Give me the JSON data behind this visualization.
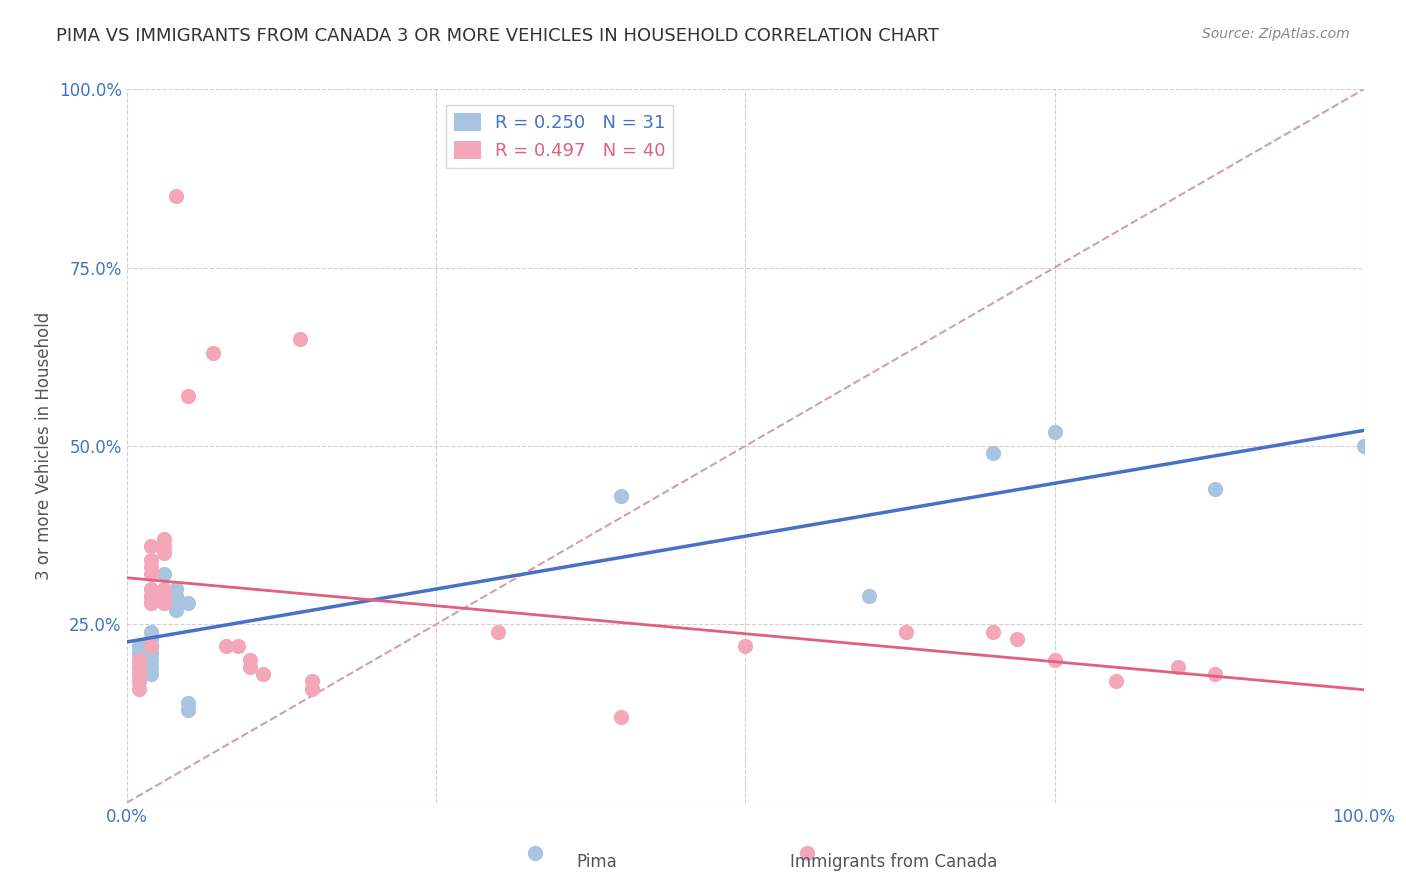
{
  "title": "PIMA VS IMMIGRANTS FROM CANADA 3 OR MORE VEHICLES IN HOUSEHOLD CORRELATION CHART",
  "source": "Source: ZipAtlas.com",
  "ylabel": "3 or more Vehicles in Household",
  "xlabel_pima": "Pima",
  "xlabel_canada": "Immigrants from Canada",
  "xlim": [
    0,
    1
  ],
  "ylim": [
    0,
    1
  ],
  "xticks": [
    0,
    0.25,
    0.5,
    0.75,
    1.0
  ],
  "yticks": [
    0,
    0.25,
    0.5,
    0.75,
    1.0
  ],
  "xticklabels": [
    "0.0%",
    "",
    "",
    "",
    "100.0%"
  ],
  "yticklabels": [
    "",
    "25.0%",
    "50.0%",
    "75.0%",
    "100.0%"
  ],
  "pima_R": 0.25,
  "pima_N": 31,
  "canada_R": 0.497,
  "canada_N": 40,
  "pima_color": "#a8c4e0",
  "canada_color": "#f4a7b9",
  "pima_line_color": "#4472c4",
  "canada_line_color": "#e06080",
  "diagonal_color": "#d0a0b0",
  "background_color": "#ffffff",
  "grid_color": "#d0d0d0",
  "pima_scatter": [
    [
      0.01,
      0.2
    ],
    [
      0.01,
      0.22
    ],
    [
      0.01,
      0.21
    ],
    [
      0.01,
      0.19
    ],
    [
      0.01,
      0.18
    ],
    [
      0.01,
      0.17
    ],
    [
      0.02,
      0.29
    ],
    [
      0.02,
      0.28
    ],
    [
      0.02,
      0.24
    ],
    [
      0.02,
      0.23
    ],
    [
      0.02,
      0.22
    ],
    [
      0.02,
      0.21
    ],
    [
      0.02,
      0.2
    ],
    [
      0.02,
      0.19
    ],
    [
      0.02,
      0.18
    ],
    [
      0.03,
      0.32
    ],
    [
      0.03,
      0.29
    ],
    [
      0.03,
      0.28
    ],
    [
      0.04,
      0.3
    ],
    [
      0.04,
      0.29
    ],
    [
      0.04,
      0.28
    ],
    [
      0.04,
      0.27
    ],
    [
      0.05,
      0.28
    ],
    [
      0.05,
      0.14
    ],
    [
      0.05,
      0.13
    ],
    [
      0.4,
      0.43
    ],
    [
      0.6,
      0.29
    ],
    [
      0.7,
      0.49
    ],
    [
      0.75,
      0.52
    ],
    [
      0.88,
      0.44
    ],
    [
      1.0,
      0.5
    ]
  ],
  "canada_scatter": [
    [
      0.01,
      0.2
    ],
    [
      0.01,
      0.19
    ],
    [
      0.01,
      0.18
    ],
    [
      0.01,
      0.17
    ],
    [
      0.01,
      0.16
    ],
    [
      0.02,
      0.36
    ],
    [
      0.02,
      0.34
    ],
    [
      0.02,
      0.33
    ],
    [
      0.02,
      0.32
    ],
    [
      0.02,
      0.3
    ],
    [
      0.02,
      0.29
    ],
    [
      0.02,
      0.28
    ],
    [
      0.02,
      0.22
    ],
    [
      0.03,
      0.37
    ],
    [
      0.03,
      0.36
    ],
    [
      0.03,
      0.35
    ],
    [
      0.03,
      0.3
    ],
    [
      0.03,
      0.29
    ],
    [
      0.03,
      0.28
    ],
    [
      0.04,
      0.85
    ],
    [
      0.05,
      0.57
    ],
    [
      0.07,
      0.63
    ],
    [
      0.08,
      0.22
    ],
    [
      0.09,
      0.22
    ],
    [
      0.1,
      0.2
    ],
    [
      0.1,
      0.19
    ],
    [
      0.11,
      0.18
    ],
    [
      0.14,
      0.65
    ],
    [
      0.15,
      0.17
    ],
    [
      0.15,
      0.16
    ],
    [
      0.3,
      0.24
    ],
    [
      0.4,
      0.12
    ],
    [
      0.5,
      0.22
    ],
    [
      0.63,
      0.24
    ],
    [
      0.7,
      0.24
    ],
    [
      0.72,
      0.23
    ],
    [
      0.75,
      0.2
    ],
    [
      0.8,
      0.17
    ],
    [
      0.85,
      0.19
    ],
    [
      0.88,
      0.18
    ]
  ]
}
